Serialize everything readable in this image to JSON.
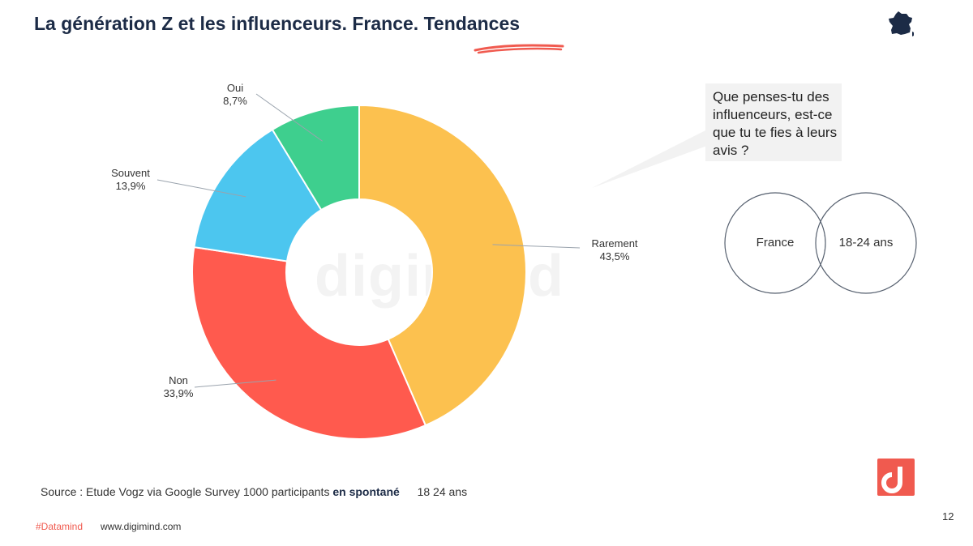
{
  "header": {
    "title": "La génération Z et les influenceurs. France. Tendances",
    "country_icon": "france-map-icon"
  },
  "chart_data": {
    "type": "pie",
    "variant": "donut",
    "slices": [
      {
        "label": "Rarement",
        "value": 43.5,
        "display": "43,5%",
        "color": "#fcc14f"
      },
      {
        "label": "Non",
        "value": 33.9,
        "display": "33,9%",
        "color": "#ff5a4e"
      },
      {
        "label": "Souvent",
        "value": 13.9,
        "display": "13,9%",
        "color": "#4cc6ef"
      },
      {
        "label": "Oui",
        "value": 8.7,
        "display": "8,7%",
        "color": "#3ecf8e"
      }
    ]
  },
  "question": {
    "text": "Que penses-tu des influenceurs, est-ce que tu te fies à leurs avis ?"
  },
  "venn": {
    "left_label": "France",
    "right_label": "18-24 ans"
  },
  "watermark": "digimind",
  "footer": {
    "source_prefix": "Source :  Etude Vogz via Google Survey   1000 participants",
    "source_bold": "en spontané",
    "source_suffix": "18 24 ans",
    "hashtag": "#Datamind",
    "site": "www.digimind.com",
    "page_number": "12"
  },
  "colors": {
    "accent": "#f05a4f",
    "title": "#1c2b46"
  }
}
